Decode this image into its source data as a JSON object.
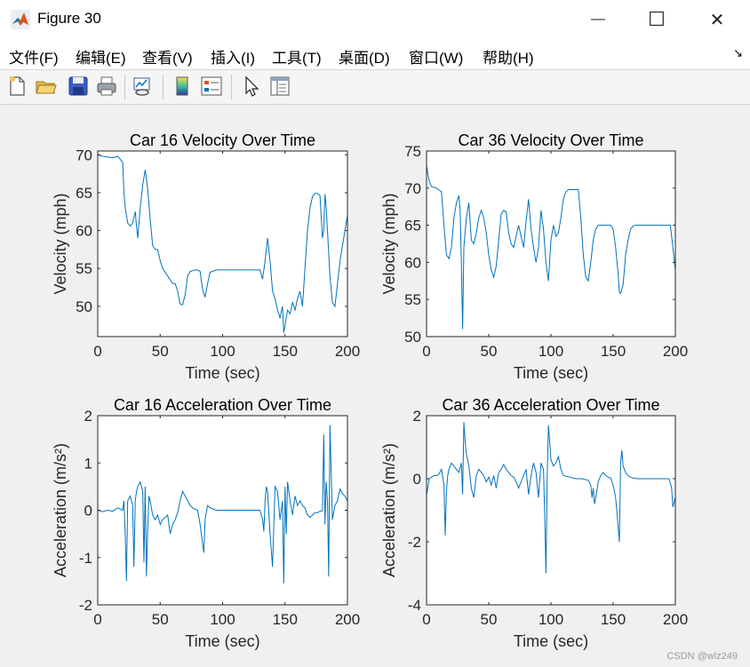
{
  "window": {
    "title": "Figure 30"
  },
  "title_buttons": {
    "minimize": "—",
    "maximize": "☐",
    "close": "✕"
  },
  "menu": [
    "文件(F)",
    "编辑(E)",
    "查看(V)",
    "插入(I)",
    "工具(T)",
    "桌面(D)",
    "窗口(W)",
    "帮助(H)"
  ],
  "menu_corner": "↘",
  "toolbar": [
    "new-figure",
    "open-file",
    "save",
    "print",
    "link-plot",
    "insert-colorbar",
    "insert-legend",
    "edit-plot-pointer",
    "property-inspector"
  ],
  "watermark": "CSDN @wlz249",
  "colors": {
    "line": "#0072BD",
    "axes_bg": "#ffffff",
    "figure_bg": "#f0f0f0"
  },
  "chart_data": [
    {
      "type": "line",
      "title": "Car 16 Velocity Over Time",
      "xlabel": "Time (sec)",
      "ylabel": "Velocity (mph)",
      "xlim": [
        0,
        200
      ],
      "ylim": [
        46,
        70.5
      ],
      "xticks": [
        0,
        50,
        100,
        150,
        200
      ],
      "yticks": [
        50,
        55,
        60,
        65,
        70
      ],
      "x": [
        0,
        4,
        8,
        12,
        16,
        20,
        21,
        22,
        24,
        26,
        28,
        30,
        31,
        32,
        34,
        36,
        38,
        40,
        42,
        44,
        46,
        48,
        50,
        52,
        54,
        56,
        58,
        60,
        62,
        64,
        66,
        68,
        70,
        72,
        74,
        76,
        78,
        80,
        82,
        84,
        86,
        88,
        90,
        95,
        100,
        110,
        120,
        130,
        132,
        134,
        136,
        138,
        140,
        142,
        144,
        146,
        148,
        149,
        150,
        152,
        154,
        156,
        158,
        160,
        162,
        164,
        166,
        168,
        170,
        172,
        174,
        176,
        178,
        180,
        181,
        182,
        183,
        184,
        186,
        188,
        190,
        192,
        194,
        196,
        198,
        200
      ],
      "y": [
        70,
        69.8,
        69.7,
        69.6,
        69.8,
        69,
        65,
        63,
        61,
        60.6,
        61,
        62.5,
        60.6,
        59,
        63,
        66,
        68,
        65.5,
        61.5,
        58,
        57.5,
        57.5,
        56,
        55,
        54.5,
        54,
        53.5,
        53,
        53,
        52,
        50.3,
        50.2,
        51.5,
        54,
        54.6,
        54.7,
        54.8,
        54.8,
        54.6,
        52.2,
        51.2,
        53,
        54.5,
        54.8,
        54.8,
        54.8,
        54.8,
        54.8,
        53.6,
        56,
        59,
        56,
        52,
        51,
        49.5,
        48.5,
        50,
        46.5,
        47.5,
        49.5,
        49,
        50.5,
        49.5,
        51,
        52,
        50,
        55,
        60,
        63,
        64.5,
        64.9,
        64.9,
        64.6,
        59,
        60,
        64.8,
        63,
        60,
        54,
        50.5,
        50,
        53,
        56,
        58,
        60,
        62
      ]
    },
    {
      "type": "line",
      "title": "Car 36 Velocity Over Time",
      "xlabel": "Time (sec)",
      "ylabel": "Velocity (mph)",
      "xlim": [
        0,
        200
      ],
      "ylim": [
        50,
        75
      ],
      "xticks": [
        0,
        50,
        100,
        150,
        200
      ],
      "yticks": [
        50,
        55,
        60,
        65,
        70,
        75
      ],
      "x": [
        0,
        1,
        2,
        4,
        8,
        12,
        14,
        16,
        18,
        20,
        22,
        24,
        26,
        27,
        28,
        29,
        30,
        31,
        32,
        34,
        36,
        38,
        40,
        42,
        44,
        46,
        48,
        50,
        52,
        54,
        56,
        58,
        60,
        62,
        64,
        66,
        68,
        70,
        72,
        74,
        76,
        78,
        80,
        82,
        84,
        86,
        88,
        90,
        92,
        94,
        96,
        98,
        100,
        102,
        104,
        106,
        108,
        110,
        112,
        114,
        116,
        118,
        120,
        122,
        124,
        126,
        128,
        130,
        132,
        134,
        136,
        138,
        140,
        142,
        144,
        146,
        148,
        150,
        152,
        154,
        155,
        156,
        158,
        160,
        162,
        164,
        166,
        168,
        170,
        180,
        190,
        196,
        198,
        200
      ],
      "y": [
        73,
        72,
        71,
        70.2,
        70,
        69.5,
        65,
        61,
        60.5,
        62,
        66,
        68,
        69,
        67,
        60,
        51,
        62,
        64,
        66,
        68,
        63,
        62.5,
        64,
        66,
        67,
        66,
        64,
        61,
        59,
        58,
        59.5,
        63,
        66.5,
        67,
        66.8,
        64,
        62.5,
        62,
        63.5,
        65,
        63.5,
        62,
        65.5,
        68.5,
        64.5,
        62,
        60,
        62,
        67,
        64.5,
        60,
        57.5,
        63,
        65,
        63.5,
        64,
        66,
        68.5,
        69.5,
        69.8,
        69.8,
        69.8,
        69.8,
        69.8,
        66,
        61,
        58,
        57.5,
        60,
        63,
        64.5,
        65,
        65,
        65,
        65,
        65,
        65,
        64.5,
        62,
        58.5,
        56,
        55.8,
        57,
        61,
        63,
        64.5,
        64.9,
        65,
        65,
        65,
        65,
        65,
        62,
        59
      ]
    },
    {
      "type": "line",
      "title": "Car 16 Acceleration Over Time",
      "xlabel": "Time (sec)",
      "ylabel": "Acceleration (m/s²)",
      "xlim": [
        0,
        200
      ],
      "ylim": [
        -2,
        2
      ],
      "xticks": [
        0,
        50,
        100,
        150,
        200
      ],
      "yticks": [
        -2,
        -1,
        0,
        1,
        2
      ],
      "x": [
        0,
        4,
        8,
        12,
        16,
        20,
        21,
        22,
        23,
        24,
        26,
        28,
        29,
        30,
        31,
        32,
        34,
        36,
        37,
        38,
        39,
        40,
        41,
        42,
        44,
        46,
        48,
        50,
        52,
        54,
        56,
        58,
        60,
        62,
        64,
        66,
        68,
        70,
        72,
        74,
        76,
        78,
        80,
        82,
        84,
        85,
        86,
        88,
        90,
        95,
        100,
        110,
        120,
        130,
        132,
        133,
        134,
        135,
        136,
        138,
        140,
        142,
        144,
        146,
        148,
        149,
        150,
        151,
        152,
        154,
        156,
        158,
        160,
        162,
        164,
        166,
        168,
        170,
        172,
        174,
        176,
        178,
        180,
        181,
        182,
        183,
        184,
        185,
        186,
        188,
        190,
        192,
        194,
        196,
        198,
        200
      ],
      "y": [
        0,
        -0.03,
        0,
        -0.02,
        0.05,
        0,
        0.2,
        -0.5,
        -1.5,
        0.2,
        0.3,
        0.1,
        -1.2,
        0.2,
        0.4,
        0.5,
        0.6,
        0.4,
        -1.1,
        0.5,
        -1.4,
        -0.4,
        0.3,
        0.2,
        -0.1,
        -0.2,
        -0.1,
        -0.3,
        -0.2,
        -0.15,
        -0.1,
        -0.5,
        -0.3,
        -0.2,
        -0.05,
        0.2,
        0.4,
        0.3,
        0.2,
        0.1,
        0.05,
        0.02,
        0,
        -0.3,
        -0.7,
        -0.9,
        -0.2,
        0.1,
        0.05,
        0,
        0,
        0,
        0,
        0,
        -0.2,
        -0.45,
        0.2,
        0.5,
        0.4,
        -0.5,
        -1.2,
        0.5,
        0.4,
        -0.2,
        0.2,
        -1.55,
        0.5,
        -0.5,
        0.6,
        0.2,
        -0.1,
        0.3,
        0.1,
        0.2,
        0.1,
        0.05,
        -0.1,
        -0.15,
        -0.1,
        -0.05,
        -0.05,
        -0.02,
        -0.01,
        1.6,
        -0.3,
        0.6,
        0.2,
        -1.4,
        1.8,
        -0.2,
        0.1,
        0.2,
        0.45,
        0.35,
        0.3,
        0.2
      ]
    },
    {
      "type": "line",
      "title": "Car 36 Acceleration Over Time",
      "xlabel": "Time (sec)",
      "ylabel": "Acceleration (m/s²)",
      "xlim": [
        0,
        200
      ],
      "ylim": [
        -4,
        2
      ],
      "xticks": [
        0,
        50,
        100,
        150,
        200
      ],
      "yticks": [
        -4,
        -2,
        0,
        2
      ],
      "x": [
        0,
        1,
        2,
        4,
        6,
        8,
        10,
        12,
        14,
        15,
        16,
        17,
        18,
        20,
        22,
        24,
        26,
        28,
        29,
        30,
        31,
        32,
        34,
        36,
        38,
        40,
        42,
        44,
        46,
        48,
        50,
        52,
        54,
        56,
        58,
        60,
        62,
        64,
        66,
        68,
        70,
        72,
        74,
        76,
        78,
        80,
        82,
        84,
        86,
        88,
        90,
        92,
        94,
        95,
        96,
        97,
        98,
        100,
        102,
        104,
        106,
        108,
        110,
        115,
        120,
        125,
        130,
        132,
        133,
        134,
        135,
        136,
        138,
        140,
        142,
        144,
        146,
        148,
        150,
        152,
        154,
        155,
        156,
        157,
        158,
        160,
        162,
        164,
        166,
        170,
        180,
        190,
        195,
        197,
        198,
        200
      ],
      "y": [
        -0.5,
        -0.3,
        0,
        0.05,
        0.1,
        0.1,
        0.15,
        0.3,
        -0.2,
        -1.8,
        -0.4,
        0.1,
        0.3,
        0.5,
        0.4,
        0.3,
        0.2,
        0.5,
        -0.5,
        1.8,
        1.2,
        0.8,
        0.4,
        -0.3,
        -0.6,
        0.1,
        0.3,
        0.2,
        0.1,
        -0.1,
        0.05,
        -0.2,
        0.1,
        -0.3,
        0.2,
        0.3,
        0.45,
        0.3,
        0.2,
        0.1,
        0.05,
        -0.1,
        -0.3,
        -0.1,
        0.1,
        0.3,
        -0.5,
        0.1,
        0.5,
        0.2,
        -0.6,
        0.5,
        0.3,
        -1.2,
        -3,
        0.1,
        1.7,
        0.6,
        0.4,
        0.5,
        0.7,
        0.3,
        0.1,
        0.05,
        0,
        0,
        -0.05,
        -0.2,
        -0.6,
        -0.3,
        -0.8,
        -0.6,
        -0.1,
        0.1,
        0.2,
        0.1,
        0.05,
        0.02,
        -0.2,
        -0.6,
        -1.5,
        -2,
        0.5,
        0.9,
        0.4,
        0.2,
        0.1,
        0.05,
        0.02,
        0,
        0,
        0,
        0,
        -0.3,
        -0.9,
        -0.6
      ]
    }
  ]
}
